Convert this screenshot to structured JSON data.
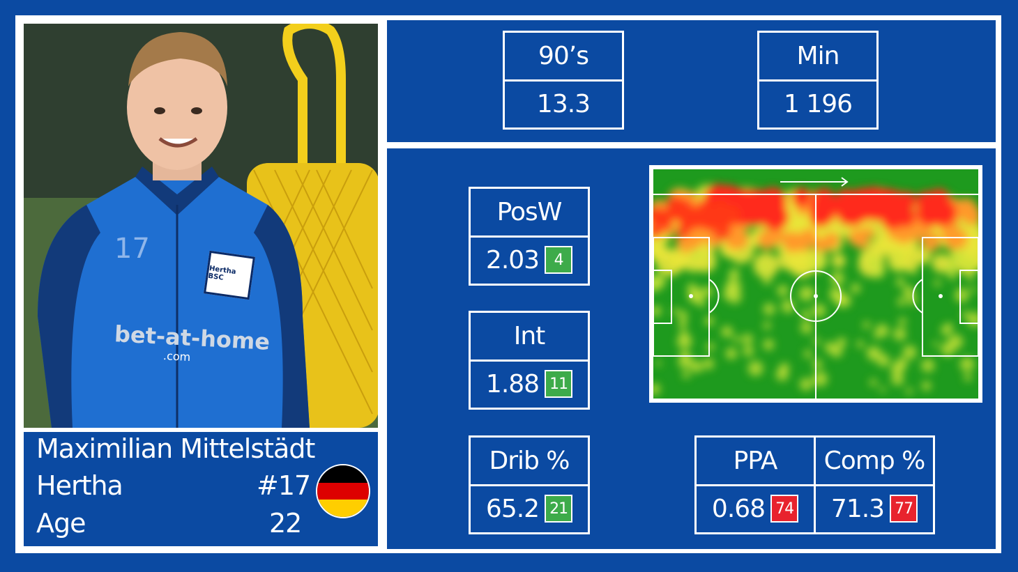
{
  "player": {
    "name": "Maximilian Mittelstädt",
    "team": "Hertha",
    "number": "#17",
    "age_label": "Age",
    "age": "22",
    "shirt_number": "17",
    "sponsor": "bet-at-home",
    "sponsor_sub": ".com",
    "crest_text": "Hertha BSC",
    "flag": [
      "#000000",
      "#dd0000",
      "#ffce00"
    ]
  },
  "summary": {
    "nineties_label": "90’s",
    "nineties_value": "13.3",
    "minutes_label": "Min",
    "minutes_value": "1 196"
  },
  "stats": {
    "posw": {
      "label": "PosW",
      "value": "2.03",
      "rank": "4"
    },
    "int": {
      "label": "Int",
      "value": "1.88",
      "rank": "11"
    },
    "drib": {
      "label": "Drib %",
      "value": "65.2",
      "rank": "21"
    },
    "ppa": {
      "label": "PPA",
      "value": "0.68",
      "rank": "74"
    },
    "comp": {
      "label": "Comp %",
      "value": "71.3",
      "rank": "77"
    }
  },
  "colors": {
    "background": "#0b4aa2",
    "good_rank": "#3dab4a",
    "bad_rank": "#e8232d",
    "pitch": "#1e9a1e"
  },
  "heatmap": {
    "direction": "right-arrow-icon"
  }
}
